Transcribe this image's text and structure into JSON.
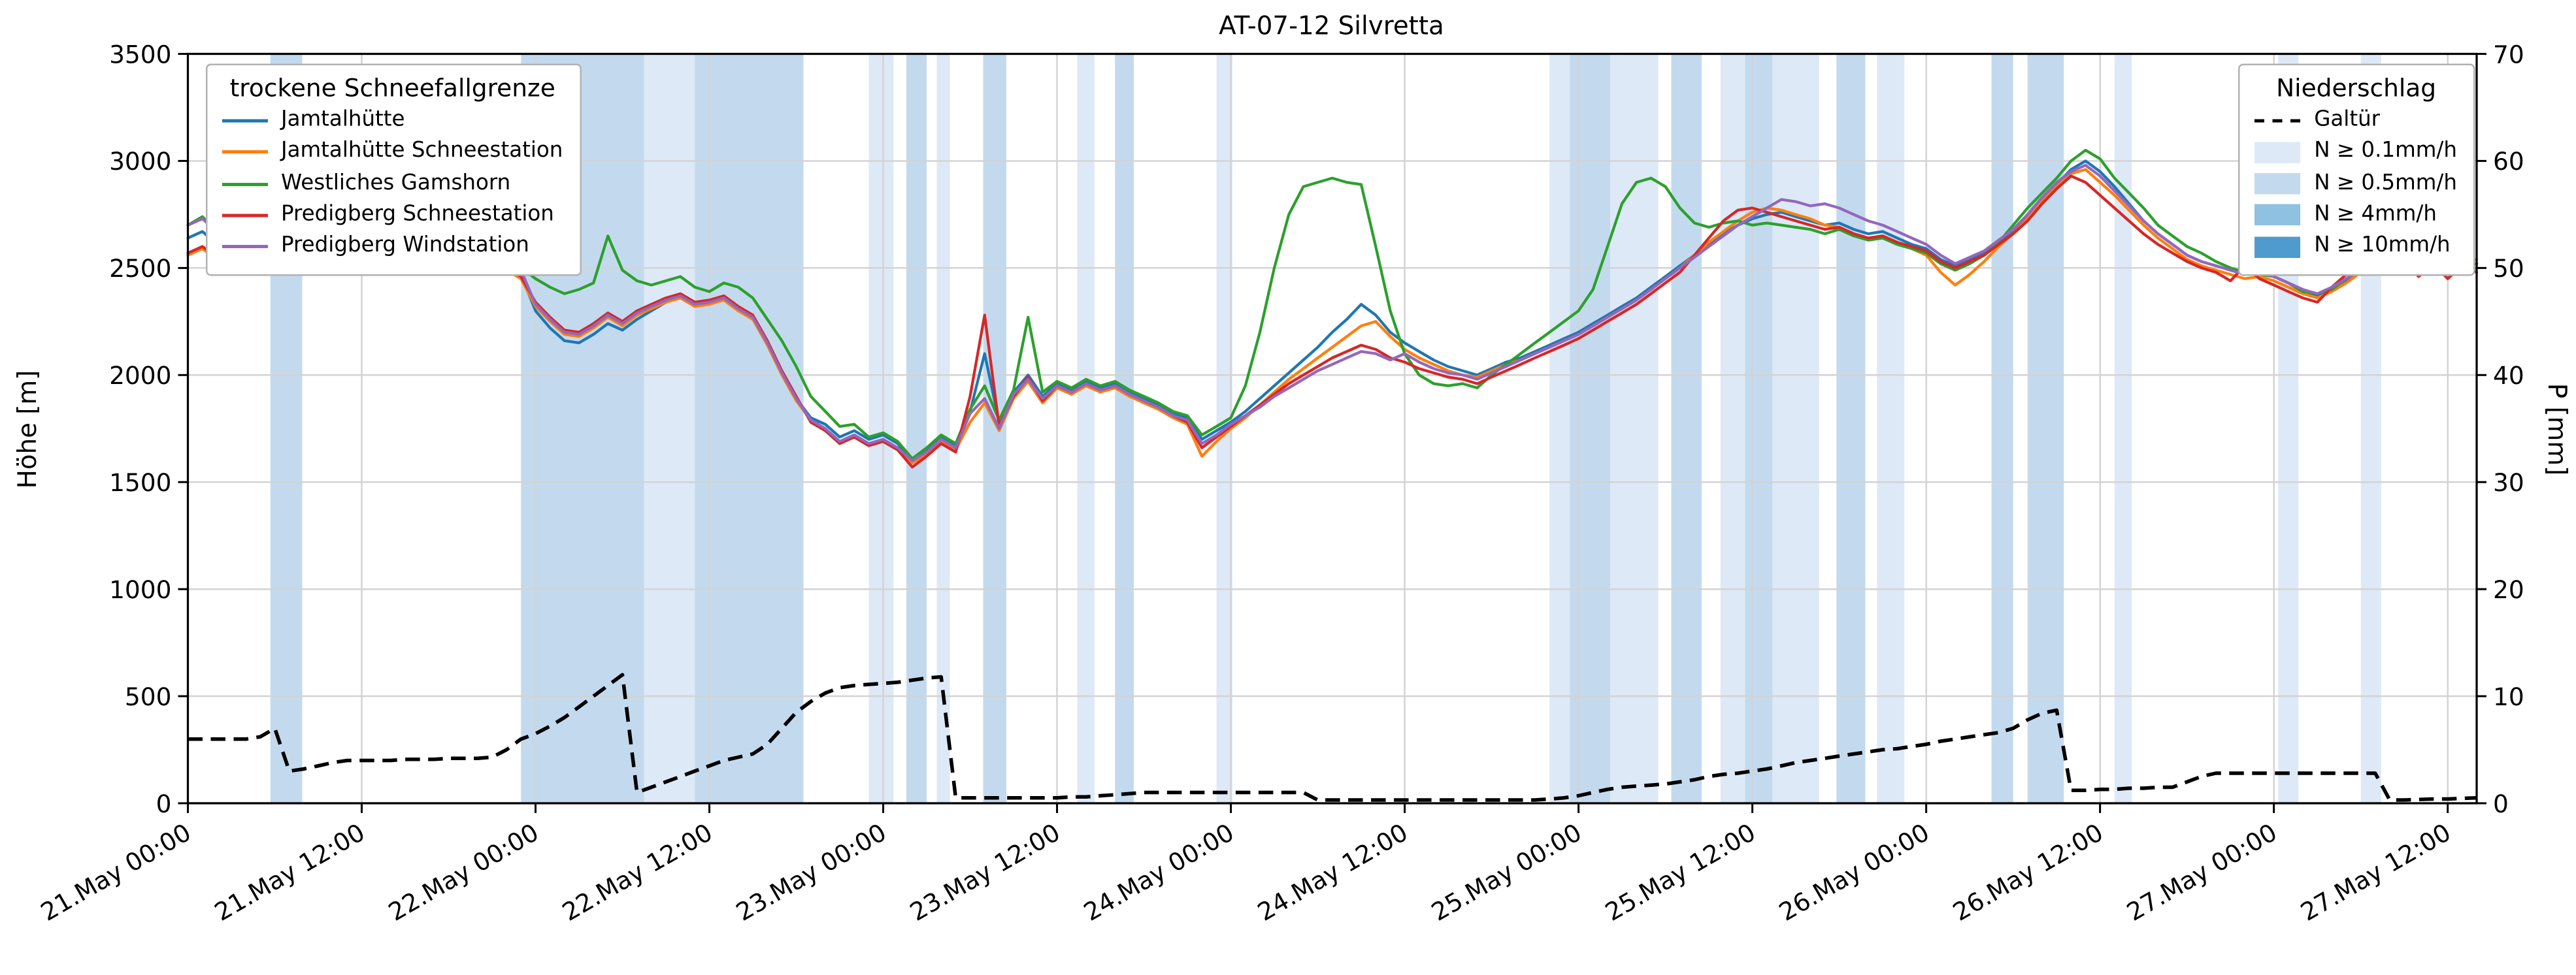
{
  "chart_data": {
    "type": "line",
    "title": "AT-07-12 Silvretta",
    "xlabel": "",
    "ylabel_left": "Höhe [m]",
    "ylabel_right": "P [mm]",
    "ylim_left": [
      0,
      3500
    ],
    "ylim_right": [
      0,
      70
    ],
    "grid": true,
    "x_hours_total": 158,
    "x_ticks": [
      {
        "h": 0,
        "label": "21.May 00:00"
      },
      {
        "h": 12,
        "label": "21.May 12:00"
      },
      {
        "h": 24,
        "label": "22.May 00:00"
      },
      {
        "h": 36,
        "label": "22.May 12:00"
      },
      {
        "h": 48,
        "label": "23.May 00:00"
      },
      {
        "h": 60,
        "label": "23.May 12:00"
      },
      {
        "h": 72,
        "label": "24.May 00:00"
      },
      {
        "h": 84,
        "label": "24.May 12:00"
      },
      {
        "h": 96,
        "label": "25.May 00:00"
      },
      {
        "h": 108,
        "label": "25.May 12:00"
      },
      {
        "h": 120,
        "label": "26.May 00:00"
      },
      {
        "h": 132,
        "label": "26.May 12:00"
      },
      {
        "h": 144,
        "label": "27.May 00:00"
      },
      {
        "h": 156,
        "label": "27.May 12:00"
      }
    ],
    "y_ticks_left": [
      0,
      500,
      1000,
      1500,
      2000,
      2500,
      3000,
      3500
    ],
    "y_ticks_right": [
      0,
      10,
      20,
      30,
      40,
      50,
      60,
      70
    ],
    "legend_left": {
      "title": "trockene Schneefallgrenze",
      "position": "upper left"
    },
    "legend_right": {
      "title": "Niederschlag",
      "position": "upper right"
    },
    "series": [
      {
        "id": "jamtalhuette",
        "name": "Jamtalhütte",
        "color": "#1f77b4",
        "values": [
          2640,
          2670,
          2610,
          2650,
          2600,
          2630,
          2670,
          2620,
          2640,
          2590,
          2620,
          2580,
          2610,
          2570,
          2590,
          2550,
          2580,
          2540,
          2560,
          2570,
          2530,
          2510,
          2520,
          2470,
          2300,
          2220,
          2160,
          2150,
          2190,
          2240,
          2210,
          2260,
          2300,
          2340,
          2370,
          2330,
          2340,
          2360,
          2310,
          2270,
          2150,
          2010,
          1890,
          1800,
          1770,
          1710,
          1740,
          1700,
          1720,
          1680,
          1600,
          1650,
          1710,
          1670,
          1830,
          2100,
          1780,
          1920,
          2000,
          1900,
          1960,
          1930,
          1970,
          1940,
          1960,
          1920,
          1890,
          1860,
          1820,
          1800,
          1700,
          1740,
          1780,
          1830,
          1890,
          1950,
          2010,
          2070,
          2130,
          2200,
          2260,
          2330,
          2280,
          2200,
          2150,
          2110,
          2070,
          2040,
          2020,
          2000,
          2030,
          2060,
          2080,
          2110,
          2140,
          2170,
          2200,
          2240,
          2280,
          2320,
          2360,
          2410,
          2460,
          2510,
          2560,
          2610,
          2660,
          2700,
          2730,
          2750,
          2760,
          2740,
          2720,
          2700,
          2710,
          2680,
          2660,
          2670,
          2640,
          2610,
          2590,
          2540,
          2510,
          2540,
          2570,
          2620,
          2670,
          2740,
          2820,
          2890,
          2960,
          3000,
          2950,
          2880,
          2800,
          2720,
          2660,
          2610,
          2560,
          2530,
          2510,
          2490,
          2470,
          2480,
          2460,
          2430,
          2390,
          2370,
          2400,
          2440,
          2490,
          2530,
          2540,
          2520,
          2530,
          2510,
          2520,
          2500,
          2520
        ]
      },
      {
        "id": "jamtalhuette-schneestation",
        "name": "Jamtalhütte Schneestation",
        "color": "#ff7f0e",
        "values": [
          2560,
          2590,
          2540,
          2580,
          2530,
          2560,
          2600,
          2550,
          2570,
          2530,
          2560,
          2520,
          2550,
          2510,
          2540,
          2500,
          2530,
          2490,
          2520,
          2530,
          2490,
          2480,
          2490,
          2450,
          2320,
          2250,
          2190,
          2180,
          2220,
          2270,
          2230,
          2280,
          2310,
          2340,
          2360,
          2320,
          2330,
          2350,
          2300,
          2260,
          2140,
          2000,
          1880,
          1790,
          1750,
          1690,
          1720,
          1680,
          1700,
          1660,
          1590,
          1630,
          1690,
          1650,
          1780,
          1870,
          1740,
          1890,
          1970,
          1870,
          1940,
          1910,
          1950,
          1920,
          1940,
          1900,
          1870,
          1840,
          1800,
          1770,
          1620,
          1690,
          1750,
          1800,
          1860,
          1920,
          1980,
          2030,
          2080,
          2130,
          2180,
          2230,
          2250,
          2180,
          2120,
          2080,
          2050,
          2020,
          2000,
          1990,
          2020,
          2050,
          2070,
          2100,
          2130,
          2160,
          2190,
          2230,
          2270,
          2310,
          2350,
          2400,
          2450,
          2500,
          2560,
          2620,
          2670,
          2720,
          2760,
          2780,
          2770,
          2750,
          2730,
          2700,
          2690,
          2660,
          2640,
          2650,
          2620,
          2590,
          2560,
          2480,
          2420,
          2470,
          2530,
          2600,
          2660,
          2730,
          2810,
          2880,
          2940,
          2960,
          2900,
          2840,
          2770,
          2700,
          2640,
          2590,
          2540,
          2510,
          2490,
          2470,
          2450,
          2460,
          2440,
          2410,
          2380,
          2360,
          2390,
          2430,
          2480,
          2520,
          2540,
          2530,
          2540,
          2520,
          2530,
          2510,
          2540
        ]
      },
      {
        "id": "westliches-gamshorn",
        "name": "Westliches Gamshorn",
        "color": "#2ca02c",
        "values": [
          2700,
          2740,
          2670,
          2610,
          2560,
          2510,
          3300,
          2620,
          2660,
          2610,
          2640,
          2600,
          2630,
          2590,
          2610,
          2570,
          2600,
          2560,
          2580,
          2590,
          2550,
          2530,
          2540,
          2500,
          2450,
          2410,
          2380,
          2400,
          2430,
          2650,
          2490,
          2440,
          2420,
          2440,
          2460,
          2410,
          2390,
          2430,
          2410,
          2360,
          2260,
          2160,
          2040,
          1900,
          1830,
          1760,
          1770,
          1710,
          1730,
          1690,
          1610,
          1660,
          1720,
          1680,
          1840,
          1950,
          1790,
          1930,
          2270,
          1920,
          1970,
          1940,
          1980,
          1950,
          1970,
          1930,
          1900,
          1870,
          1830,
          1810,
          1720,
          1760,
          1800,
          1950,
          2200,
          2500,
          2750,
          2880,
          2900,
          2920,
          2900,
          2890,
          2600,
          2300,
          2100,
          2000,
          1960,
          1950,
          1960,
          1940,
          2000,
          2050,
          2100,
          2150,
          2200,
          2250,
          2300,
          2400,
          2600,
          2800,
          2900,
          2920,
          2880,
          2780,
          2710,
          2690,
          2710,
          2720,
          2700,
          2710,
          2700,
          2690,
          2680,
          2660,
          2680,
          2650,
          2630,
          2640,
          2610,
          2590,
          2570,
          2520,
          2490,
          2520,
          2560,
          2620,
          2700,
          2780,
          2850,
          2920,
          3000,
          3050,
          3010,
          2920,
          2850,
          2780,
          2700,
          2650,
          2600,
          2570,
          2530,
          2500,
          2480,
          2470,
          2460,
          2430,
          2390,
          2380,
          2400,
          2450,
          2500,
          2530,
          2540,
          2520,
          2530,
          2510,
          2520,
          2500,
          2520
        ]
      },
      {
        "id": "predigberg-schneestation",
        "name": "Predigberg Schneestation",
        "color": "#d62728",
        "values": [
          2570,
          2600,
          2550,
          2590,
          2540,
          2570,
          2610,
          2560,
          2580,
          2540,
          2570,
          2530,
          2560,
          2520,
          2550,
          2510,
          2540,
          2500,
          2530,
          2540,
          2500,
          2490,
          2500,
          2460,
          2340,
          2270,
          2210,
          2200,
          2240,
          2290,
          2250,
          2300,
          2330,
          2360,
          2380,
          2340,
          2350,
          2370,
          2320,
          2280,
          2160,
          2020,
          1900,
          1780,
          1740,
          1680,
          1710,
          1670,
          1690,
          1650,
          1570,
          1620,
          1680,
          1640,
          1900,
          2280,
          1760,
          1900,
          1990,
          1880,
          1950,
          1920,
          1960,
          1930,
          1950,
          1910,
          1880,
          1850,
          1810,
          1780,
          1660,
          1710,
          1760,
          1810,
          1860,
          1910,
          1960,
          2000,
          2040,
          2080,
          2110,
          2140,
          2120,
          2080,
          2060,
          2030,
          2010,
          1990,
          1980,
          1960,
          1990,
          2020,
          2050,
          2080,
          2110,
          2140,
          2170,
          2210,
          2250,
          2290,
          2330,
          2380,
          2430,
          2480,
          2560,
          2640,
          2720,
          2770,
          2780,
          2760,
          2740,
          2720,
          2700,
          2680,
          2690,
          2660,
          2640,
          2650,
          2620,
          2600,
          2580,
          2530,
          2500,
          2530,
          2560,
          2610,
          2660,
          2720,
          2800,
          2870,
          2930,
          2900,
          2840,
          2780,
          2720,
          2660,
          2610,
          2570,
          2530,
          2500,
          2480,
          2440,
          2510,
          2450,
          2420,
          2390,
          2360,
          2340,
          2410,
          2470,
          2520,
          2560,
          2480,
          2530,
          2460,
          2520,
          2450,
          2510,
          2480
        ]
      },
      {
        "id": "predigberg-windstation",
        "name": "Predigberg Windstation",
        "color": "#9467bd",
        "values": [
          2700,
          2730,
          2670,
          2710,
          2660,
          2690,
          2720,
          2670,
          2690,
          2650,
          2680,
          2630,
          2660,
          2610,
          2630,
          2590,
          2620,
          2570,
          2590,
          2600,
          2560,
          2530,
          2540,
          2490,
          2330,
          2260,
          2200,
          2190,
          2230,
          2280,
          2240,
          2290,
          2320,
          2350,
          2370,
          2330,
          2340,
          2360,
          2310,
          2270,
          2150,
          2010,
          1890,
          1790,
          1750,
          1690,
          1720,
          1680,
          1700,
          1660,
          1600,
          1640,
          1700,
          1660,
          1820,
          1890,
          1750,
          1910,
          1980,
          1890,
          1950,
          1920,
          1960,
          1930,
          1950,
          1910,
          1880,
          1850,
          1810,
          1790,
          1680,
          1720,
          1770,
          1810,
          1850,
          1900,
          1940,
          1980,
          2020,
          2050,
          2080,
          2110,
          2100,
          2070,
          2100,
          2060,
          2030,
          2010,
          2000,
          1980,
          2010,
          2040,
          2070,
          2100,
          2130,
          2160,
          2190,
          2230,
          2270,
          2310,
          2350,
          2400,
          2450,
          2500,
          2550,
          2600,
          2650,
          2700,
          2740,
          2780,
          2820,
          2810,
          2790,
          2800,
          2780,
          2750,
          2720,
          2700,
          2670,
          2640,
          2610,
          2560,
          2520,
          2550,
          2580,
          2630,
          2680,
          2750,
          2830,
          2900,
          2950,
          2980,
          2930,
          2860,
          2790,
          2720,
          2660,
          2610,
          2560,
          2530,
          2510,
          2490,
          2470,
          2480,
          2460,
          2430,
          2400,
          2380,
          2410,
          2450,
          2490,
          2520,
          2530,
          2510,
          2520,
          2500,
          2510,
          2490,
          2500
        ]
      }
    ],
    "precip_series": {
      "id": "galtuer",
      "name": "Galtür",
      "color": "#000000",
      "style": "dashed",
      "axis": "right",
      "values": [
        6,
        6,
        6,
        6,
        6,
        6.2,
        7,
        3,
        3.2,
        3.5,
        3.8,
        4,
        4,
        4,
        4,
        4.1,
        4.1,
        4.1,
        4.2,
        4.2,
        4.2,
        4.3,
        5,
        6,
        6.5,
        7.2,
        8,
        9,
        10,
        11,
        12,
        1,
        1.5,
        2,
        2.5,
        3,
        3.5,
        4,
        4.3,
        4.6,
        5.5,
        7,
        8.5,
        9.5,
        10.3,
        10.8,
        11,
        11.1,
        11.2,
        11.3,
        11.5,
        11.7,
        11.8,
        0.5,
        0.5,
        0.5,
        0.5,
        0.5,
        0.5,
        0.5,
        0.5,
        0.6,
        0.6,
        0.7,
        0.8,
        0.9,
        1,
        1,
        1,
        1,
        1,
        1,
        1,
        1,
        1,
        1,
        1,
        1,
        0.3,
        0.3,
        0.3,
        0.3,
        0.3,
        0.3,
        0.3,
        0.3,
        0.3,
        0.3,
        0.3,
        0.3,
        0.3,
        0.3,
        0.3,
        0.3,
        0.4,
        0.5,
        0.7,
        1,
        1.3,
        1.5,
        1.6,
        1.7,
        1.8,
        2,
        2.2,
        2.5,
        2.7,
        2.8,
        3,
        3.2,
        3.5,
        3.8,
        4,
        4.2,
        4.4,
        4.6,
        4.8,
        5,
        5.1,
        5.3,
        5.5,
        5.8,
        6,
        6.2,
        6.4,
        6.6,
        7,
        7.8,
        8.4,
        8.7,
        1.2,
        1.2,
        1.3,
        1.3,
        1.4,
        1.4,
        1.5,
        1.5,
        2,
        2.5,
        2.8,
        2.8,
        2.8,
        2.8,
        2.8,
        2.8,
        2.8,
        2.8,
        2.8,
        2.8,
        2.8,
        2.8,
        0.3,
        0.3,
        0.35,
        0.4,
        0.4,
        0.45,
        0.5
      ]
    },
    "precip_band_levels": [
      {
        "label": "N ≥ 0.1mm/h",
        "color": "#dde9f6"
      },
      {
        "label": "N ≥ 0.5mm/h",
        "color": "#c3daee"
      },
      {
        "label": "N ≥ 4mm/h",
        "color": "#8fc1e0"
      },
      {
        "label": "N ≥ 10mm/h",
        "color": "#4f9bce"
      }
    ],
    "precip_bands": [
      {
        "from": 5.7,
        "to": 7.9,
        "level": 2
      },
      {
        "from": 23.0,
        "to": 31.5,
        "level": 2
      },
      {
        "from": 31.5,
        "to": 35.0,
        "level": 1
      },
      {
        "from": 35.0,
        "to": 42.5,
        "level": 2
      },
      {
        "from": 47.0,
        "to": 48.7,
        "level": 1
      },
      {
        "from": 49.6,
        "to": 51.0,
        "level": 2
      },
      {
        "from": 51.7,
        "to": 52.6,
        "level": 1
      },
      {
        "from": 54.9,
        "to": 56.5,
        "level": 2
      },
      {
        "from": 61.4,
        "to": 62.6,
        "level": 1
      },
      {
        "from": 64.0,
        "to": 65.3,
        "level": 2
      },
      {
        "from": 71.0,
        "to": 72.1,
        "level": 1
      },
      {
        "from": 94.0,
        "to": 95.4,
        "level": 1
      },
      {
        "from": 95.4,
        "to": 98.2,
        "level": 2
      },
      {
        "from": 98.2,
        "to": 101.5,
        "level": 1
      },
      {
        "from": 102.4,
        "to": 104.5,
        "level": 2
      },
      {
        "from": 105.8,
        "to": 107.5,
        "level": 1
      },
      {
        "from": 107.5,
        "to": 109.4,
        "level": 2
      },
      {
        "from": 109.4,
        "to": 112.6,
        "level": 1
      },
      {
        "from": 113.8,
        "to": 115.8,
        "level": 2
      },
      {
        "from": 116.6,
        "to": 118.5,
        "level": 1
      },
      {
        "from": 124.5,
        "to": 126.0,
        "level": 2
      },
      {
        "from": 127.0,
        "to": 129.5,
        "level": 2
      },
      {
        "from": 133.0,
        "to": 134.2,
        "level": 1
      },
      {
        "from": 144.3,
        "to": 145.7,
        "level": 1
      },
      {
        "from": 150.0,
        "to": 151.4,
        "level": 1
      }
    ]
  }
}
